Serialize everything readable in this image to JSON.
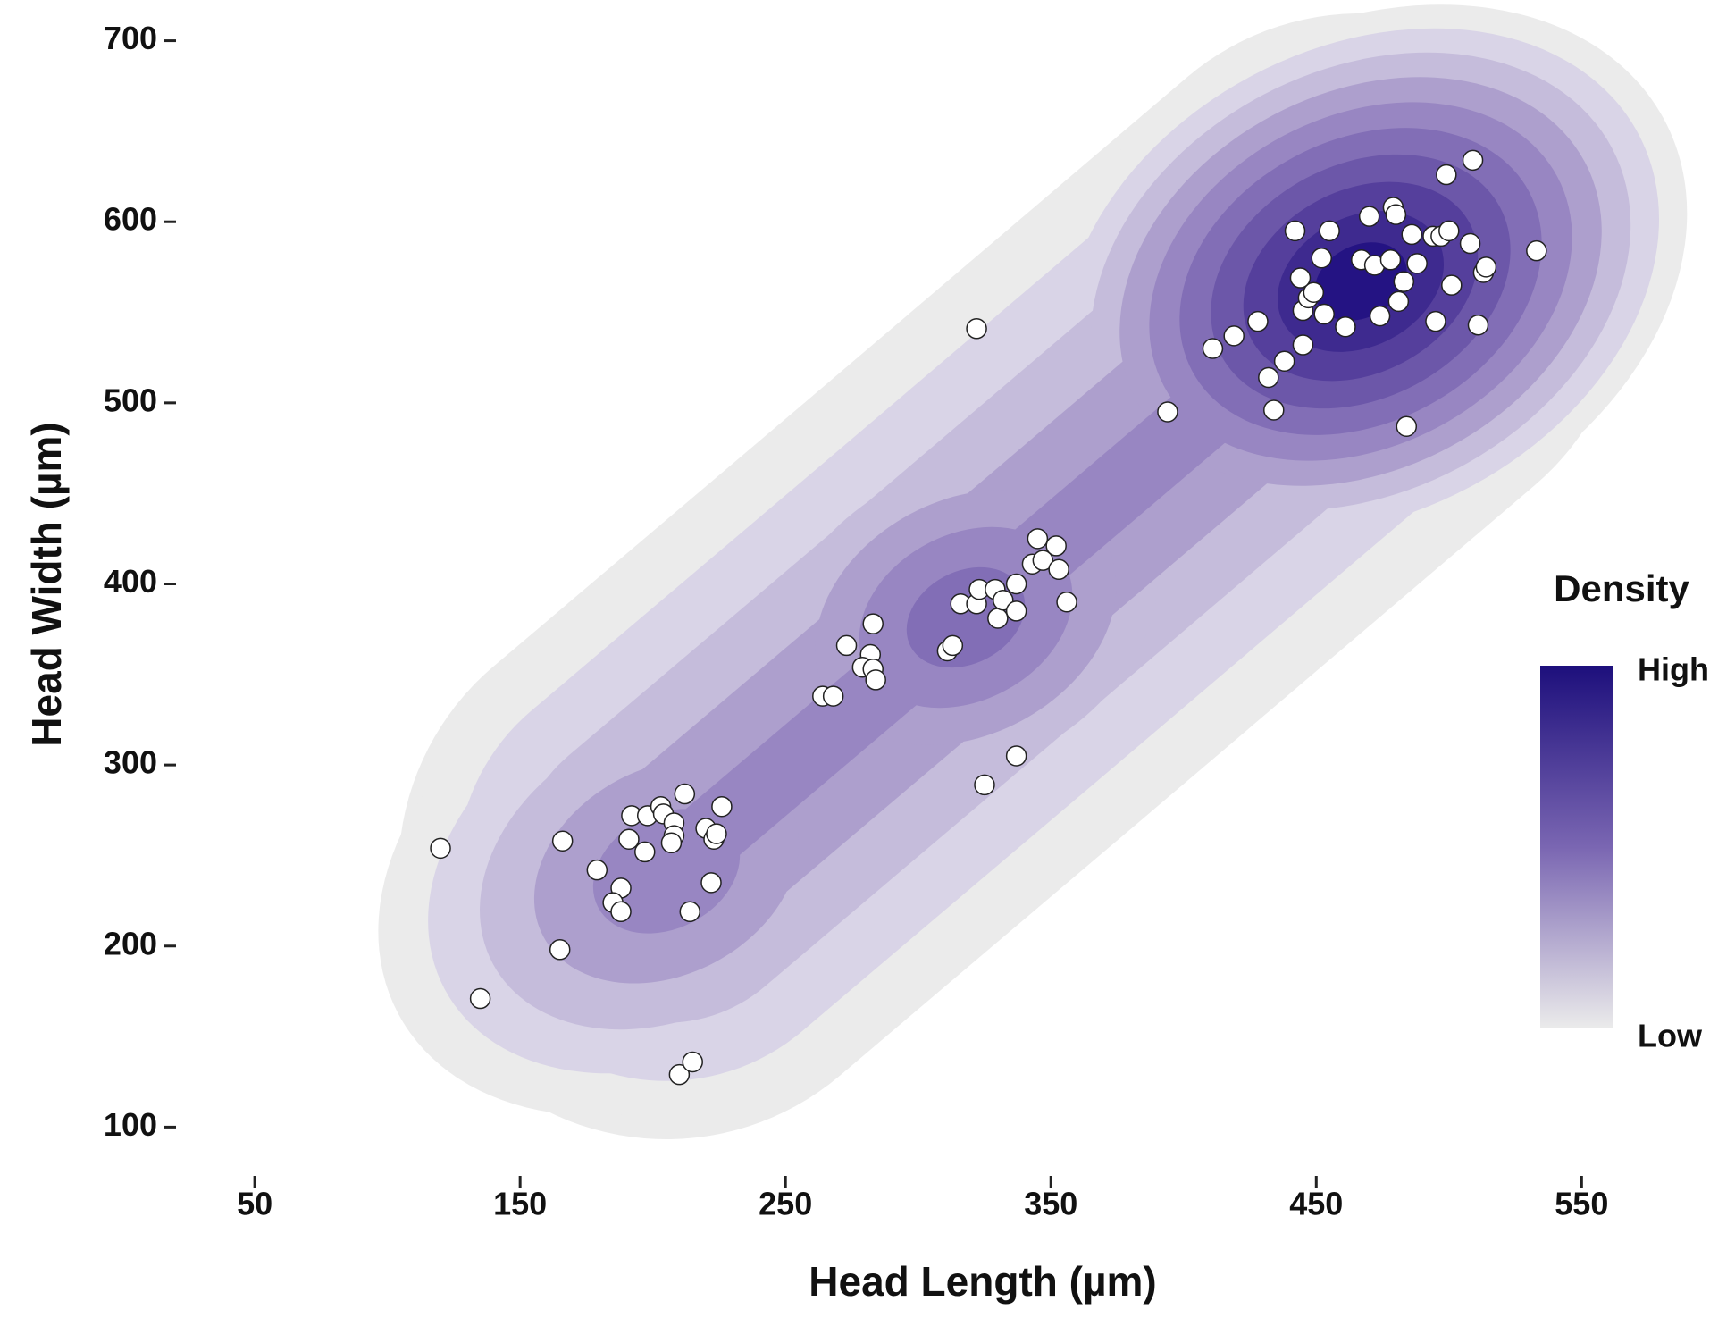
{
  "chart_data": {
    "type": "scatter",
    "x_label": "Head Length (µm)",
    "y_label": "Head Width (µm)",
    "xlim": [
      20,
      595
    ],
    "ylim": [
      77,
      722
    ],
    "xticks": [
      50,
      150,
      250,
      350,
      450,
      550
    ],
    "yticks": [
      100,
      200,
      300,
      400,
      500,
      600,
      700
    ],
    "color": "#ffffff",
    "x": [
      120,
      135,
      166,
      165,
      179,
      188,
      185,
      188,
      192,
      191,
      197,
      198,
      203,
      204,
      208,
      208,
      207,
      212,
      214,
      220,
      223,
      224,
      222,
      226,
      210,
      215,
      264,
      268,
      273,
      283,
      282,
      279,
      283,
      284,
      311,
      313,
      316,
      322,
      323,
      329,
      330,
      332,
      337,
      337,
      343,
      345,
      347,
      352,
      353,
      356,
      322,
      325,
      337,
      394,
      411,
      419,
      428,
      432,
      434,
      438,
      445,
      442,
      445,
      447,
      449,
      444,
      452,
      453,
      455,
      461,
      467,
      470,
      472,
      474,
      478,
      479,
      480,
      481,
      483,
      486,
      488,
      484,
      495,
      494,
      497,
      500,
      499,
      501,
      509,
      508,
      511,
      513,
      514,
      533
    ],
    "values": [
      254,
      171,
      258,
      198,
      242,
      232,
      224,
      219,
      272,
      259,
      252,
      272,
      277,
      273,
      268,
      261,
      257,
      284,
      219,
      265,
      259,
      262,
      235,
      277,
      129,
      136,
      338,
      338,
      366,
      378,
      361,
      354,
      353,
      347,
      363,
      366,
      389,
      389,
      397,
      397,
      381,
      391,
      385,
      400,
      411,
      425,
      413,
      421,
      408,
      390,
      541,
      289,
      305,
      495,
      530,
      537,
      545,
      514,
      496,
      523,
      532,
      595,
      551,
      558,
      561,
      569,
      580,
      549,
      595,
      542,
      579,
      603,
      576,
      548,
      579,
      608,
      604,
      556,
      567,
      593,
      577,
      487,
      545,
      592,
      592,
      595,
      626,
      565,
      634,
      588,
      543,
      572,
      575,
      584
    ],
    "legend": {
      "title": "Density",
      "labels": [
        "High",
        "Low"
      ],
      "colors": [
        "#1d0f7c",
        "#ebebeb"
      ]
    }
  }
}
